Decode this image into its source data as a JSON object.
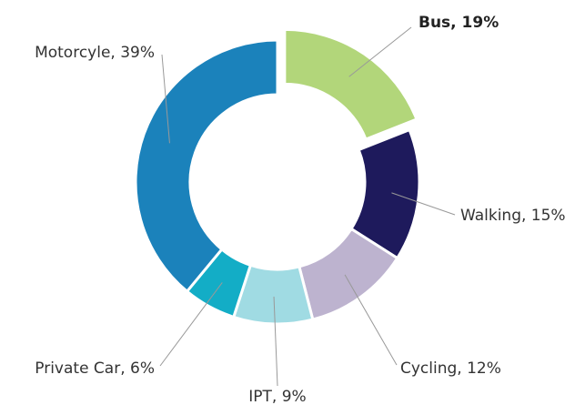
{
  "chart_data": {
    "type": "donut",
    "values": [
      19,
      15,
      12,
      9,
      6,
      39
    ],
    "value_labels": [
      "Bus, 19%",
      "Walking, 15%",
      "Cycling, 12%",
      "IPT, 9%",
      "Private Car, 6%",
      "Motorcyle, 39%"
    ],
    "colors": [
      "#b2d67a",
      "#1e1a5c",
      "#bdb3cf",
      "#a0dbe3",
      "#13adc6",
      "#1b82bb"
    ]
  }
}
